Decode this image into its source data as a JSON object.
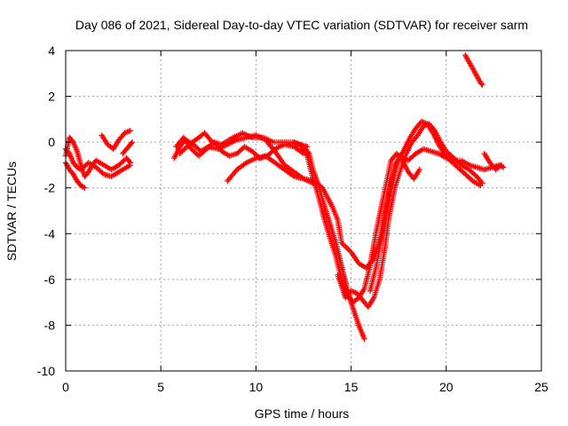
{
  "chart_data": {
    "type": "scatter",
    "title": "Day 086 of 2021, Sidereal Day-to-day VTEC variation (SDTVAR) for receiver sarm",
    "xlabel": "GPS time / hours",
    "ylabel": "SDTVAR / TECUs",
    "xlim": [
      0,
      25
    ],
    "ylim": [
      -10,
      4
    ],
    "xticks": [
      0,
      5,
      10,
      15,
      20,
      25
    ],
    "yticks": [
      -10,
      -8,
      -6,
      -4,
      -2,
      0,
      2,
      4
    ],
    "grid": true,
    "marker": "plus",
    "color": "#ff0000",
    "series": [
      {
        "values": [
          [
            0.0,
            -0.6
          ],
          [
            0.2,
            0.2
          ],
          [
            0.4,
            0.0
          ],
          [
            0.6,
            -0.4
          ],
          [
            0.8,
            -1.0
          ],
          [
            1.0,
            -1.5
          ],
          [
            1.2,
            -1.3
          ],
          [
            1.4,
            -1.0
          ],
          [
            1.6,
            -0.8
          ],
          [
            2.0,
            -1.0
          ],
          [
            2.4,
            -1.2
          ],
          [
            2.8,
            -1.0
          ],
          [
            3.2,
            -0.7
          ],
          [
            3.4,
            -0.9
          ]
        ]
      },
      {
        "values": [
          [
            0.0,
            -0.9
          ],
          [
            0.2,
            -1.2
          ],
          [
            0.4,
            -1.4
          ],
          [
            0.6,
            -1.7
          ],
          [
            0.8,
            -1.9
          ],
          [
            1.0,
            -2.0
          ]
        ]
      },
      {
        "values": [
          [
            0.0,
            -0.3
          ],
          [
            0.2,
            -0.5
          ],
          [
            0.4,
            -0.9
          ],
          [
            0.6,
            -1.1
          ],
          [
            0.8,
            -1.2
          ],
          [
            1.2,
            -0.9
          ],
          [
            1.6,
            -1.1
          ],
          [
            2.0,
            -1.4
          ],
          [
            2.4,
            -1.5
          ],
          [
            2.8,
            -1.3
          ],
          [
            3.2,
            -1.1
          ],
          [
            3.4,
            -1.0
          ]
        ]
      },
      {
        "values": [
          [
            1.9,
            0.3
          ],
          [
            2.2,
            -0.1
          ],
          [
            2.5,
            -0.3
          ],
          [
            2.8,
            0.1
          ],
          [
            3.1,
            0.4
          ],
          [
            3.4,
            0.5
          ]
        ]
      },
      {
        "values": [
          [
            3.0,
            -0.5
          ],
          [
            3.3,
            -0.2
          ],
          [
            3.5,
            0.0
          ]
        ]
      },
      {
        "values": [
          [
            5.7,
            -0.7
          ],
          [
            6.0,
            -0.2
          ],
          [
            6.3,
            0.1
          ],
          [
            6.7,
            -0.1
          ],
          [
            7.1,
            -0.4
          ],
          [
            7.5,
            -0.2
          ],
          [
            8.0,
            -0.3
          ],
          [
            8.5,
            -0.1
          ],
          [
            9.0,
            0.1
          ],
          [
            9.5,
            0.2
          ],
          [
            10.0,
            0.3
          ],
          [
            10.5,
            0.1
          ],
          [
            11.0,
            -0.4
          ],
          [
            11.5,
            -1.0
          ],
          [
            12.0,
            -1.3
          ],
          [
            12.5,
            -1.6
          ],
          [
            13.0,
            -1.8
          ]
        ]
      },
      {
        "values": [
          [
            5.8,
            -0.2
          ],
          [
            6.2,
            0.2
          ],
          [
            6.6,
            -0.3
          ],
          [
            7.0,
            -0.6
          ],
          [
            7.4,
            -0.3
          ],
          [
            7.8,
            0.0
          ],
          [
            8.2,
            -0.4
          ],
          [
            8.6,
            -0.6
          ],
          [
            9.0,
            -0.5
          ],
          [
            9.4,
            -0.2
          ],
          [
            9.8,
            -0.4
          ],
          [
            10.2,
            -0.7
          ],
          [
            10.6,
            -0.6
          ],
          [
            11.0,
            -0.3
          ],
          [
            11.5,
            -0.1
          ],
          [
            12.0,
            -0.2
          ],
          [
            12.5,
            -0.5
          ]
        ]
      },
      {
        "values": [
          [
            6.0,
            -0.5
          ],
          [
            6.5,
            -0.1
          ],
          [
            7.0,
            0.2
          ],
          [
            7.3,
            0.4
          ],
          [
            7.7,
            0.0
          ],
          [
            8.2,
            -0.1
          ],
          [
            8.8,
            0.2
          ],
          [
            9.3,
            0.4
          ],
          [
            9.8,
            0.2
          ],
          [
            10.4,
            0.2
          ],
          [
            10.9,
            0.0
          ],
          [
            11.4,
            0.0
          ],
          [
            11.9,
            0.0
          ],
          [
            12.3,
            -0.1
          ],
          [
            12.7,
            -0.2
          ]
        ]
      },
      {
        "values": [
          [
            8.5,
            -1.7
          ],
          [
            9.0,
            -1.2
          ],
          [
            9.5,
            -0.9
          ],
          [
            10.0,
            -0.7
          ],
          [
            10.5,
            -0.6
          ],
          [
            11.0,
            -0.9
          ],
          [
            11.5,
            -1.2
          ],
          [
            12.0,
            -1.5
          ],
          [
            12.5,
            -1.6
          ],
          [
            13.0,
            -1.7
          ],
          [
            13.5,
            -2.0
          ],
          [
            14.0,
            -2.8
          ],
          [
            14.3,
            -3.4
          ],
          [
            14.5,
            -4.4
          ],
          [
            15.0,
            -4.8
          ],
          [
            15.4,
            -5.3
          ],
          [
            15.8,
            -5.5
          ],
          [
            16.2,
            -5.1
          ],
          [
            16.6,
            -4.0
          ],
          [
            17.0,
            -2.2
          ],
          [
            17.3,
            -1.0
          ],
          [
            17.6,
            -0.6
          ],
          [
            18.0,
            -0.8
          ],
          [
            18.4,
            -0.5
          ],
          [
            18.8,
            -0.3
          ],
          [
            19.2,
            -0.4
          ],
          [
            19.6,
            -0.5
          ],
          [
            20.0,
            -0.7
          ],
          [
            20.4,
            -0.8
          ],
          [
            20.8,
            -0.8
          ],
          [
            21.2,
            -1.0
          ],
          [
            21.6,
            -1.1
          ],
          [
            22.0,
            -1.2
          ],
          [
            22.4,
            -1.1
          ],
          [
            22.8,
            -1.0
          ],
          [
            23.0,
            -1.1
          ]
        ]
      },
      {
        "values": [
          [
            12.0,
            0.0
          ],
          [
            12.5,
            -0.2
          ],
          [
            12.8,
            -0.5
          ],
          [
            13.0,
            -1.2
          ],
          [
            13.3,
            -1.9
          ],
          [
            13.6,
            -2.8
          ],
          [
            13.9,
            -3.6
          ],
          [
            14.2,
            -4.4
          ],
          [
            14.5,
            -5.4
          ],
          [
            14.8,
            -6.4
          ],
          [
            15.0,
            -7.0
          ],
          [
            15.2,
            -7.5
          ],
          [
            15.4,
            -8.0
          ],
          [
            15.6,
            -8.4
          ],
          [
            15.7,
            -8.6
          ]
        ]
      },
      {
        "values": [
          [
            12.4,
            -0.2
          ],
          [
            12.7,
            -0.6
          ],
          [
            13.0,
            -1.6
          ],
          [
            13.3,
            -2.4
          ],
          [
            13.6,
            -3.4
          ],
          [
            13.9,
            -4.2
          ],
          [
            14.2,
            -5.0
          ],
          [
            14.5,
            -6.0
          ],
          [
            14.8,
            -6.7
          ],
          [
            15.1,
            -7.0
          ],
          [
            15.4,
            -6.8
          ],
          [
            15.7,
            -6.4
          ],
          [
            16.0,
            -5.4
          ],
          [
            16.3,
            -4.0
          ],
          [
            16.6,
            -2.8
          ],
          [
            16.9,
            -1.6
          ],
          [
            17.1,
            -0.8
          ],
          [
            17.4,
            -0.5
          ],
          [
            17.7,
            -0.8
          ],
          [
            18.0,
            -1.3
          ],
          [
            18.3,
            -1.6
          ],
          [
            18.6,
            -1.2
          ]
        ]
      },
      {
        "values": [
          [
            14.3,
            -5.8
          ],
          [
            14.7,
            -6.8
          ],
          [
            15.0,
            -6.5
          ],
          [
            15.3,
            -6.6
          ],
          [
            15.6,
            -6.9
          ],
          [
            15.9,
            -7.2
          ],
          [
            16.2,
            -6.8
          ],
          [
            16.5,
            -6.0
          ],
          [
            16.8,
            -4.5
          ],
          [
            17.0,
            -3.2
          ],
          [
            17.3,
            -2.0
          ],
          [
            17.6,
            -1.2
          ],
          [
            17.9,
            -0.5
          ],
          [
            18.2,
            0.0
          ],
          [
            18.5,
            0.3
          ],
          [
            18.8,
            0.7
          ],
          [
            19.1,
            0.8
          ],
          [
            19.4,
            0.5
          ],
          [
            19.7,
            0.0
          ],
          [
            20.0,
            -0.4
          ],
          [
            20.4,
            -0.7
          ],
          [
            20.8,
            -1.0
          ],
          [
            21.2,
            -1.2
          ],
          [
            21.6,
            -1.5
          ],
          [
            21.9,
            -1.8
          ]
        ]
      },
      {
        "values": [
          [
            16.0,
            -6.5
          ],
          [
            16.3,
            -5.5
          ],
          [
            16.6,
            -4.2
          ],
          [
            16.9,
            -2.8
          ],
          [
            17.2,
            -1.6
          ],
          [
            17.5,
            -0.8
          ],
          [
            17.8,
            -0.3
          ],
          [
            18.1,
            0.2
          ],
          [
            18.4,
            0.6
          ],
          [
            18.7,
            0.9
          ],
          [
            19.0,
            0.8
          ],
          [
            19.3,
            0.4
          ],
          [
            19.6,
            -0.1
          ],
          [
            19.9,
            -0.5
          ],
          [
            20.2,
            -0.8
          ],
          [
            20.6,
            -1.1
          ],
          [
            21.0,
            -1.4
          ],
          [
            21.4,
            -1.7
          ],
          [
            21.8,
            -1.9
          ]
        ]
      },
      {
        "values": [
          [
            21.0,
            3.8
          ],
          [
            21.2,
            3.5
          ],
          [
            21.4,
            3.2
          ],
          [
            21.6,
            2.9
          ],
          [
            21.8,
            2.6
          ],
          [
            21.9,
            2.5
          ]
        ]
      },
      {
        "values": [
          [
            22.0,
            -0.5
          ],
          [
            22.3,
            -0.9
          ],
          [
            22.6,
            -1.2
          ],
          [
            22.9,
            -1.0
          ]
        ]
      }
    ]
  }
}
